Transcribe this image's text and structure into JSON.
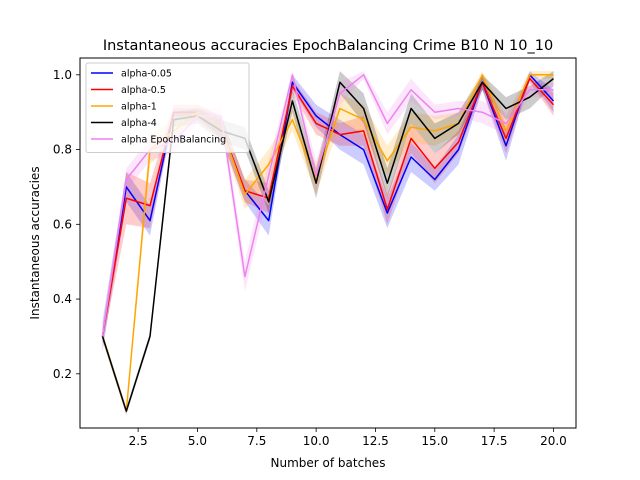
{
  "chart_data": {
    "type": "line",
    "title": "Instantaneous accuracies EpochBalancing Crime B10 N 10_10",
    "xlabel": "Number of batches",
    "ylabel": "Instantaneous accuracies",
    "xlim": [
      0.05,
      20.95
    ],
    "ylim": [
      0.055,
      1.045
    ],
    "xticks": [
      2.5,
      5.0,
      7.5,
      10.0,
      12.5,
      15.0,
      17.5,
      20.0
    ],
    "xtick_labels": [
      "2.5",
      "5.0",
      "7.5",
      "10.0",
      "12.5",
      "15.0",
      "17.5",
      "20.0"
    ],
    "yticks": [
      0.2,
      0.4,
      0.6,
      0.8,
      1.0
    ],
    "ytick_labels": [
      "0.2",
      "0.4",
      "0.6",
      "0.8",
      "1.0"
    ],
    "grid": false,
    "legend_position": "top-left",
    "x": [
      1,
      2,
      3,
      4,
      5,
      6,
      7,
      8,
      9,
      10,
      11,
      12,
      13,
      14,
      15,
      16,
      17,
      18,
      19,
      20
    ],
    "series": [
      {
        "name": "alpha-0.05",
        "color": "#0000ff",
        "values": [
          0.3,
          0.7,
          0.61,
          0.9,
          0.9,
          0.86,
          0.69,
          0.61,
          0.98,
          0.89,
          0.84,
          0.8,
          0.63,
          0.78,
          0.72,
          0.8,
          0.98,
          0.81,
          1.0,
          0.93
        ],
        "band": [
          0.04,
          0.04,
          0.04,
          0.01,
          0.01,
          0.03,
          0.03,
          0.04,
          0.02,
          0.03,
          0.04,
          0.04,
          0.04,
          0.04,
          0.03,
          0.04,
          0.02,
          0.04,
          0.01,
          0.03
        ]
      },
      {
        "name": "alpha-0.5",
        "color": "#ff0000",
        "values": [
          0.3,
          0.67,
          0.65,
          0.9,
          0.9,
          0.86,
          0.69,
          0.67,
          0.97,
          0.87,
          0.84,
          0.85,
          0.64,
          0.83,
          0.75,
          0.82,
          0.98,
          0.83,
          0.99,
          0.92
        ],
        "band": [
          0.02,
          0.07,
          0.06,
          0.02,
          0.02,
          0.03,
          0.03,
          0.04,
          0.02,
          0.03,
          0.03,
          0.04,
          0.04,
          0.04,
          0.04,
          0.03,
          0.02,
          0.04,
          0.01,
          0.03
        ]
      },
      {
        "name": "alpha-1",
        "color": "#ffa500",
        "values": [
          0.3,
          0.1,
          0.8,
          0.85,
          0.9,
          0.86,
          0.68,
          0.76,
          0.88,
          0.72,
          0.91,
          0.88,
          0.77,
          0.86,
          0.85,
          0.87,
          1.0,
          0.85,
          1.0,
          1.0
        ],
        "band": [
          0.01,
          0.01,
          0.04,
          0.03,
          0.02,
          0.03,
          0.04,
          0.04,
          0.03,
          0.04,
          0.04,
          0.04,
          0.04,
          0.04,
          0.04,
          0.03,
          0.01,
          0.04,
          0.01,
          0.01
        ]
      },
      {
        "name": "alpha-4",
        "color": "#000000",
        "values": [
          0.3,
          0.1,
          0.3,
          0.88,
          0.89,
          0.85,
          0.83,
          0.66,
          0.93,
          0.71,
          0.98,
          0.91,
          0.71,
          0.91,
          0.83,
          0.87,
          0.98,
          0.91,
          0.94,
          0.99
        ],
        "band": [
          0.01,
          0.01,
          0.01,
          0.02,
          0.02,
          0.03,
          0.03,
          0.03,
          0.03,
          0.04,
          0.03,
          0.04,
          0.04,
          0.04,
          0.04,
          0.03,
          0.02,
          0.03,
          0.03,
          0.02
        ]
      },
      {
        "name": "alpha EpochBalancing",
        "color": "#ee82ee",
        "values": [
          0.3,
          0.72,
          0.8,
          0.82,
          0.89,
          0.89,
          0.46,
          0.73,
          1.0,
          0.73,
          0.95,
          1.0,
          0.87,
          0.96,
          0.9,
          0.91,
          0.9,
          0.87,
          0.96,
          0.96
        ],
        "band": [
          0.01,
          0.03,
          0.03,
          0.03,
          0.02,
          0.02,
          0.04,
          0.04,
          0.01,
          0.04,
          0.03,
          0.01,
          0.03,
          0.03,
          0.02,
          0.02,
          0.03,
          0.03,
          0.02,
          0.02
        ]
      }
    ]
  }
}
